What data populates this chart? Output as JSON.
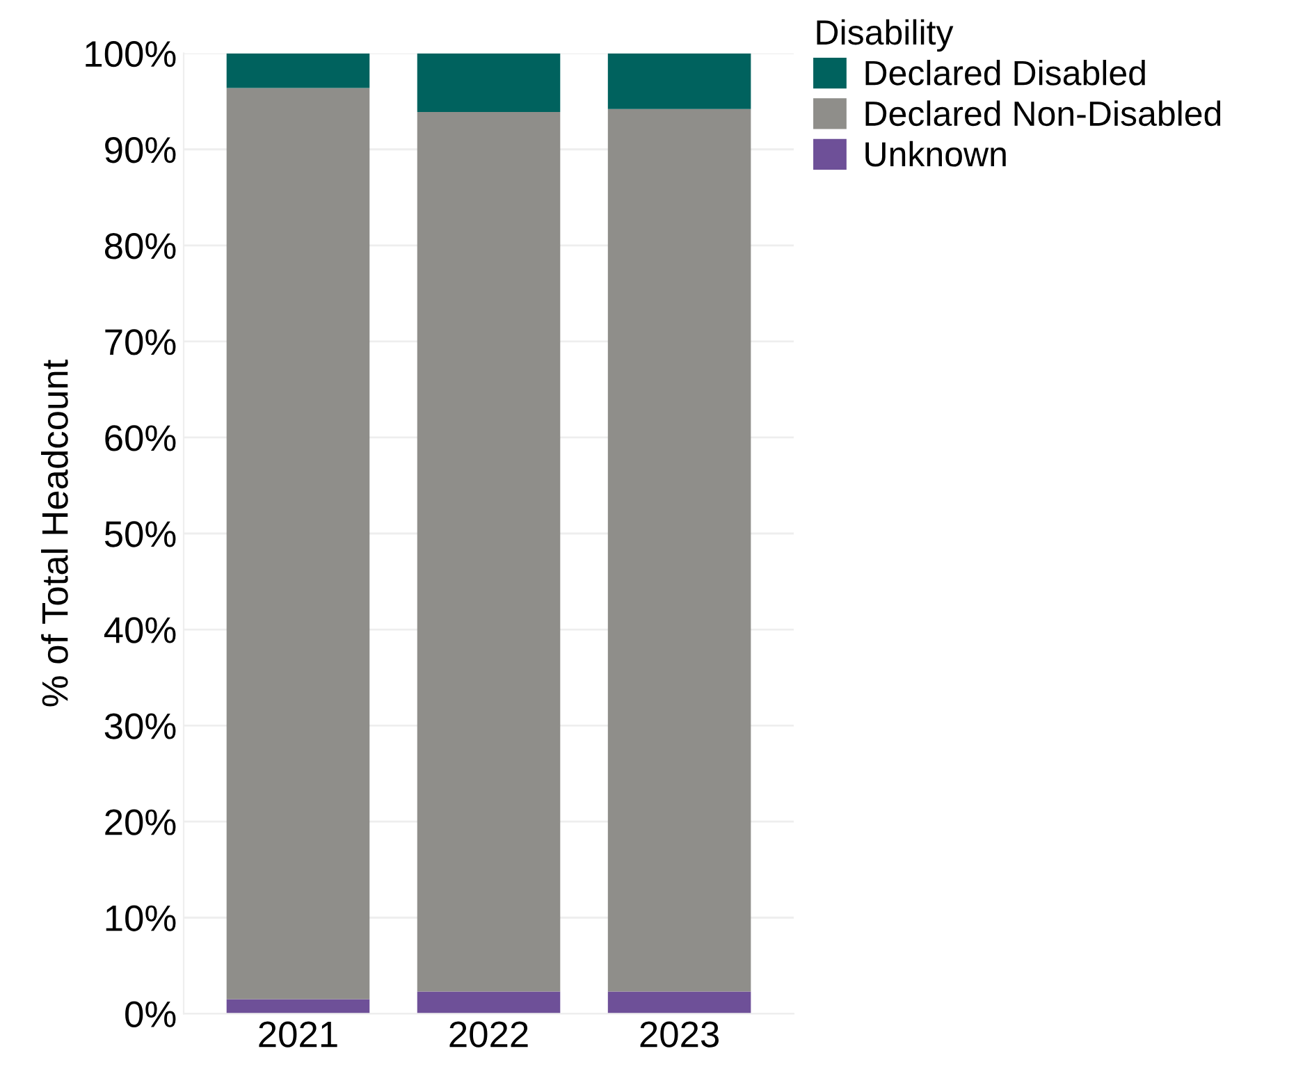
{
  "chart_data": {
    "type": "bar",
    "stacked": true,
    "ylabel": "% of Total Headcount",
    "legend_title": "Disability",
    "legend": "top right",
    "grid": "y",
    "categories": [
      "2021",
      "2022",
      "2023"
    ],
    "series": [
      {
        "name": "Unknown",
        "color": "#6e5098",
        "values": [
          1.5,
          2.3,
          2.3
        ]
      },
      {
        "name": "Declared Non-Disabled",
        "color": "#8f8e8a",
        "values": [
          94.9,
          91.6,
          91.9
        ]
      },
      {
        "name": "Declared Disabled",
        "color": "#00625e",
        "values": [
          3.6,
          6.1,
          5.8
        ]
      }
    ],
    "ylim": [
      0,
      100
    ],
    "yticks": [
      {
        "value": 0,
        "label": "0%"
      },
      {
        "value": 10,
        "label": "10%"
      },
      {
        "value": 20,
        "label": "20%"
      },
      {
        "value": 30,
        "label": "30%"
      },
      {
        "value": 40,
        "label": "40%"
      },
      {
        "value": 50,
        "label": "50%"
      },
      {
        "value": 60,
        "label": "60%"
      },
      {
        "value": 70,
        "label": "70%"
      },
      {
        "value": 80,
        "label": "80%"
      },
      {
        "value": 90,
        "label": "90%"
      },
      {
        "value": 100,
        "label": "100%"
      }
    ]
  }
}
